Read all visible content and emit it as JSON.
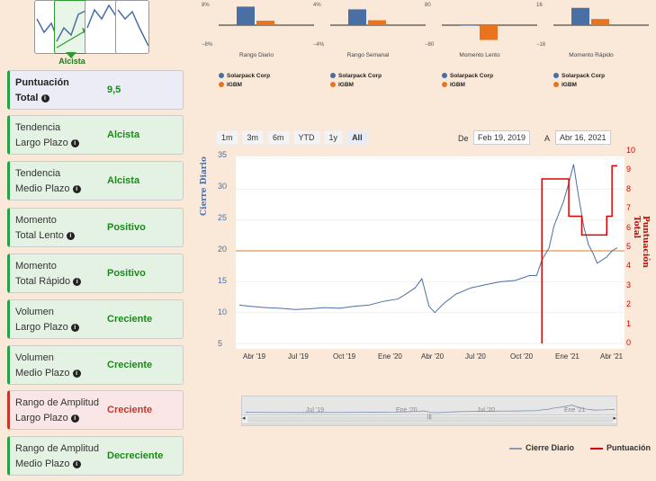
{
  "trend": {
    "label": "Alcista"
  },
  "cards": [
    {
      "line1": "Puntuación",
      "line2": "Total",
      "value": "9,5",
      "kind": "total"
    },
    {
      "line1": "Tendencia",
      "line2": "Largo Plazo",
      "value": "Alcista",
      "kind": "green"
    },
    {
      "line1": "Tendencia",
      "line2": "Medio Plazo",
      "value": "Alcista",
      "kind": "green"
    },
    {
      "line1": "Momento",
      "line2": "Total Lento",
      "value": "Positivo",
      "kind": "green"
    },
    {
      "line1": "Momento",
      "line2": "Total Rápido",
      "value": "Positivo",
      "kind": "green"
    },
    {
      "line1": "Volumen",
      "line2": "Largo Plazo",
      "value": "Creciente",
      "kind": "green"
    },
    {
      "line1": "Volumen",
      "line2": "Medio Plazo",
      "value": "Creciente",
      "kind": "green"
    },
    {
      "line1": "Rango de Amplitud",
      "line2": "Largo Plazo",
      "value": "Creciente",
      "kind": "red"
    },
    {
      "line1": "Rango de Amplitud",
      "line2": "Medio Plazo",
      "value": "Decreciente",
      "kind": "green"
    }
  ],
  "info_glyph": "i",
  "mini_charts": [
    {
      "title": "Rango Diario",
      "ymax": "8%",
      "ymin": "−8%",
      "values": [
        7.5,
        1.8
      ]
    },
    {
      "title": "Rango Semanal",
      "ymax": "4%",
      "ymin": "−4%",
      "values": [
        3.2,
        1.0
      ]
    },
    {
      "title": "Momento Lento",
      "ymax": "80",
      "ymin": "−80",
      "values": [
        -2,
        -60
      ]
    },
    {
      "title": "Momento Rápido",
      "ymax": "16",
      "ymin": "−16",
      "values": [
        14,
        5
      ]
    }
  ],
  "mini_legend": {
    "a": "Solarpack Corp",
    "b": "IGBM"
  },
  "colors": {
    "blue": "#4a6fa5",
    "orange": "#e8741e",
    "red": "#e00000",
    "green": "#27a047"
  },
  "range_buttons": [
    "1m",
    "3m",
    "6m",
    "YTD",
    "1y",
    "All"
  ],
  "selected_range": "All",
  "date_range": {
    "from_label": "De",
    "from": "Feb 19, 2019",
    "to_label": "A",
    "to": "Abr 16, 2021"
  },
  "axis": {
    "left_label": "Cierre Diario",
    "right_label": "Puntuación Total",
    "left_ticks": [
      "35",
      "30",
      "25",
      "20",
      "15",
      "10",
      "5"
    ],
    "right_ticks": [
      "10",
      "9",
      "8",
      "7",
      "6",
      "5",
      "4",
      "3",
      "2",
      "1",
      "0"
    ],
    "x_ticks": [
      "Abr '19",
      "Jul '19",
      "Oct '19",
      "Ene '20",
      "Abr '20",
      "Jul '20",
      "Oct '20",
      "Ene '21",
      "Abr '21"
    ],
    "nav_ticks": [
      "Jul '19",
      "Ene '20",
      "Jul '20",
      "Ene '21"
    ]
  },
  "chart_data": {
    "type": "line",
    "xlabel": "",
    "ylabel": "Cierre Diario",
    "ylabel_right": "Puntuación Total",
    "ylim": [
      5,
      35
    ],
    "ylim_right": [
      0,
      10
    ],
    "reference_line": 20,
    "series": [
      {
        "name": "Cierre Diario",
        "axis": "left",
        "color": "#4a6fa5",
        "x": [
          "2019-02-19",
          "2019-03-15",
          "2019-04-15",
          "2019-05-15",
          "2019-06-15",
          "2019-07-15",
          "2019-08-15",
          "2019-09-15",
          "2019-10-15",
          "2019-11-15",
          "2019-12-15",
          "2020-01-15",
          "2020-02-01",
          "2020-02-20",
          "2020-03-05",
          "2020-03-20",
          "2020-04-01",
          "2020-04-20",
          "2020-05-15",
          "2020-06-15",
          "2020-07-15",
          "2020-08-15",
          "2020-09-15",
          "2020-10-15",
          "2020-10-30",
          "2020-11-10",
          "2020-11-25",
          "2020-12-05",
          "2020-12-15",
          "2020-12-25",
          "2021-01-05",
          "2021-01-15",
          "2021-01-25",
          "2021-02-05",
          "2021-02-15",
          "2021-02-25",
          "2021-03-05",
          "2021-03-15",
          "2021-03-25",
          "2021-04-05",
          "2021-04-16"
        ],
        "values": [
          11.2,
          11.0,
          10.8,
          10.7,
          10.5,
          10.6,
          10.8,
          10.7,
          11.0,
          11.2,
          11.8,
          12.2,
          13.0,
          14.0,
          15.5,
          11.0,
          10.0,
          11.5,
          13.0,
          14.0,
          14.5,
          15.0,
          15.2,
          16.0,
          16.0,
          18.5,
          20.5,
          24.0,
          26.0,
          28.0,
          31.0,
          34.0,
          29.0,
          24.0,
          21.0,
          19.5,
          18.0,
          18.5,
          19.0,
          20.0,
          20.5
        ]
      },
      {
        "name": "Puntuación",
        "axis": "right",
        "color": "#e00000",
        "x": [
          "2020-11-10",
          "2020-11-10",
          "2021-01-05",
          "2021-01-05",
          "2021-02-01",
          "2021-02-01",
          "2021-02-20",
          "2021-02-20",
          "2021-03-25",
          "2021-03-25",
          "2021-04-05",
          "2021-04-05",
          "2021-04-16"
        ],
        "values": [
          0,
          8.8,
          8.8,
          6.8,
          6.8,
          5.8,
          5.8,
          5.8,
          5.8,
          6.8,
          6.8,
          9.5,
          9.5
        ]
      }
    ]
  },
  "legend": {
    "close": "Cierre Diario",
    "score": "Puntuación"
  }
}
